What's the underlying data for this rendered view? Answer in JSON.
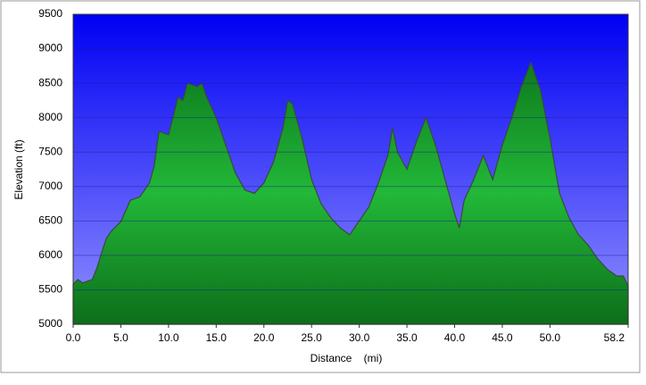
{
  "chart_data": {
    "type": "area",
    "xlabel": "Distance    (mi)",
    "ylabel": "Elevation (ft)",
    "x": [
      0,
      0.5,
      1,
      2,
      2.5,
      3,
      3.5,
      4,
      5,
      6,
      7,
      8,
      8.5,
      9,
      10,
      11,
      11.5,
      12,
      13,
      13.5,
      14,
      15,
      16,
      17,
      18,
      19,
      20,
      21,
      22,
      22.5,
      23,
      24,
      25,
      26,
      27,
      28,
      29,
      30,
      31,
      32,
      33,
      33.5,
      34,
      35,
      36,
      37,
      38,
      39,
      40,
      40.5,
      41,
      42,
      43,
      44,
      45,
      46,
      47,
      48,
      49,
      50,
      51,
      52,
      53,
      54,
      55,
      56,
      57,
      57.7,
      58.2
    ],
    "values": [
      5580,
      5650,
      5600,
      5650,
      5820,
      6050,
      6250,
      6350,
      6490,
      6800,
      6850,
      7050,
      7300,
      7800,
      7750,
      8300,
      8250,
      8500,
      8450,
      8500,
      8300,
      8000,
      7600,
      7200,
      6950,
      6900,
      7050,
      7350,
      7850,
      8250,
      8200,
      7700,
      7100,
      6750,
      6550,
      6400,
      6300,
      6500,
      6700,
      7050,
      7450,
      7850,
      7500,
      7250,
      7650,
      8000,
      7600,
      7100,
      6600,
      6400,
      6800,
      7100,
      7450,
      7100,
      7600,
      8000,
      8450,
      8800,
      8400,
      7700,
      6900,
      6550,
      6300,
      6150,
      5950,
      5800,
      5700,
      5700,
      5550
    ],
    "color": "#1aa52e",
    "xlim": [
      0,
      58.2
    ],
    "ylim": [
      5000,
      9500
    ],
    "xticks": [
      {
        "value": 0,
        "label": "0.0"
      },
      {
        "value": 5,
        "label": "5.0"
      },
      {
        "value": 10,
        "label": "10.0"
      },
      {
        "value": 15,
        "label": "15.0"
      },
      {
        "value": 20,
        "label": "20.0"
      },
      {
        "value": 25,
        "label": "25.0"
      },
      {
        "value": 30,
        "label": "30.0"
      },
      {
        "value": 35,
        "label": "35.0"
      },
      {
        "value": 40,
        "label": "40.0"
      },
      {
        "value": 45,
        "label": "45.0"
      },
      {
        "value": 50,
        "label": "50.0"
      },
      58.2
    ],
    "yticks": [
      5000,
      5500,
      6000,
      6500,
      7000,
      7500,
      8000,
      8500,
      9000,
      9500
    ],
    "grid": true
  }
}
